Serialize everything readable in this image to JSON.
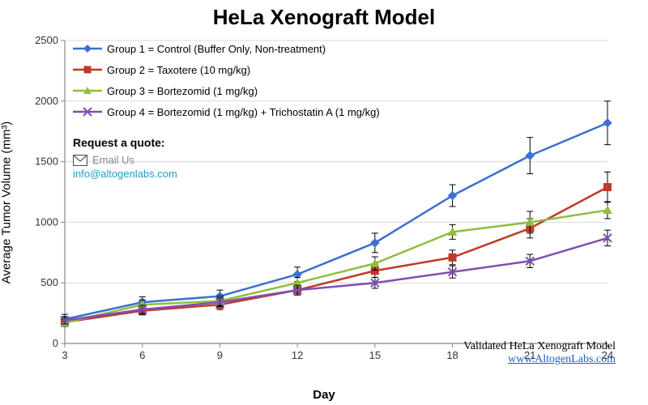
{
  "chart": {
    "title": "HeLa Xenograft Model",
    "title_fontsize": 26,
    "title_color": "#000000",
    "xlabel": "Day",
    "ylabel": "Average Tumor Volume (mm³)",
    "label_fontsize": 15,
    "tick_fontsize": 13,
    "xlim": [
      3,
      24
    ],
    "xtick_step": 3,
    "ylim": [
      0,
      2500
    ],
    "ytick_step": 500,
    "grid_color": "#d9d9d9",
    "axis_color": "#888888",
    "background_color": "#ffffff",
    "line_width": 2.5,
    "marker_size": 8,
    "error_bar_color": "#000000",
    "error_bar_width": 1,
    "x": [
      3,
      6,
      9,
      12,
      15,
      18,
      21,
      24
    ],
    "series": [
      {
        "id": "group1",
        "label": "Group 1 = Control (Buffer Only, Non-treatment)",
        "color": "#3d6fd1",
        "marker": "diamond",
        "y": [
          200,
          340,
          390,
          570,
          830,
          1220,
          1550,
          1820
        ],
        "err": [
          40,
          45,
          50,
          60,
          80,
          90,
          150,
          180
        ]
      },
      {
        "id": "group2",
        "label": "Group 2 = Taxotere (10 mg/kg)",
        "color": "#c0392b",
        "marker": "square",
        "y": [
          175,
          270,
          320,
          440,
          600,
          710,
          950,
          1290
        ],
        "err": [
          30,
          35,
          40,
          40,
          55,
          60,
          80,
          125
        ]
      },
      {
        "id": "group3",
        "label": "Group 3 = Bortezomid (1 mg/kg)",
        "color": "#8fbe3f",
        "marker": "triangle",
        "y": [
          170,
          320,
          350,
          500,
          660,
          920,
          1000,
          1100
        ],
        "err": [
          30,
          40,
          40,
          45,
          55,
          60,
          90,
          70
        ]
      },
      {
        "id": "group4",
        "label": "Group 4 = Bortezomid (1 mg/kg) + Trichostatin A (1 mg/kg)",
        "color": "#7e4fb0",
        "marker": "x",
        "y": [
          190,
          280,
          340,
          440,
          500,
          590,
          680,
          870
        ],
        "err": [
          30,
          35,
          35,
          40,
          45,
          50,
          55,
          65
        ]
      }
    ]
  },
  "legend": {
    "fontsize": 13
  },
  "quote": {
    "title": "Request a quote:",
    "email_label": "Email Us",
    "email": "info@altogenlabs.com",
    "email_color": "#1fa0c8"
  },
  "footer": {
    "note": "Validated HeLa Xenograft Model",
    "link_label": "www.AltogenLabs.com",
    "link_color": "#1a5fc4"
  }
}
